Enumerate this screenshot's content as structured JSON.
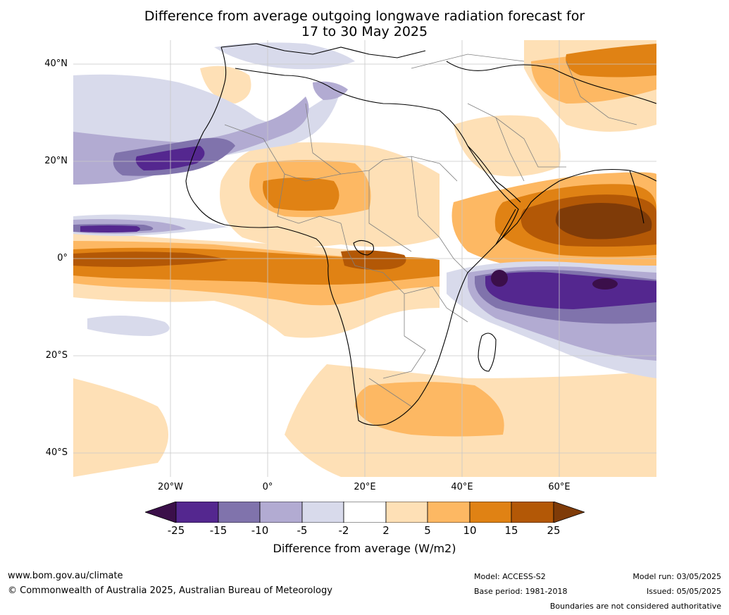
{
  "title_line1": "Difference from average outgoing longwave radiation forecast for",
  "title_line2": "17 to 30 May 2025",
  "lat_labels": [
    {
      "value": 40,
      "label": "40°N"
    },
    {
      "value": 20,
      "label": "20°N"
    },
    {
      "value": 0,
      "label": "0°"
    },
    {
      "value": -20,
      "label": "20°S"
    },
    {
      "value": -40,
      "label": "40°S"
    }
  ],
  "lon_labels": [
    {
      "value": -20,
      "label": "20°W"
    },
    {
      "value": 0,
      "label": "0°"
    },
    {
      "value": 20,
      "label": "20°E"
    },
    {
      "value": 40,
      "label": "40°E"
    },
    {
      "value": 60,
      "label": "60°E"
    }
  ],
  "map_extent": {
    "lon": [
      -40,
      80
    ],
    "lat": [
      -45,
      45
    ]
  },
  "colorbar": {
    "ticks": [
      "-25",
      "-15",
      "-10",
      "-5",
      "-2",
      "2",
      "5",
      "10",
      "15",
      "25"
    ],
    "colors": [
      "#3b0f4a",
      "#54278f",
      "#8073ac",
      "#b2abd2",
      "#d8daeb",
      "#ffffff",
      "#fee0b6",
      "#fdb863",
      "#e08214",
      "#b35806",
      "#7f3b08"
    ],
    "label": "Difference from average (W/m2)"
  },
  "colors": {
    "ocean_neutral": "#ffffff",
    "coast": "#000000",
    "borders": "#808080",
    "grid": "#c8c8c8"
  },
  "footer": {
    "website": "www.bom.gov.au/climate",
    "copyright": "© Commonwealth of Australia 2025, Australian Bureau of Meteorology",
    "model": "Model: ACCESS-S2",
    "base_period": "Base period: 1981-2018",
    "model_run": "Model run: 03/05/2025",
    "issued": "Issued: 05/05/2025",
    "disclaimer": "Boundaries are not considered authoritative"
  }
}
